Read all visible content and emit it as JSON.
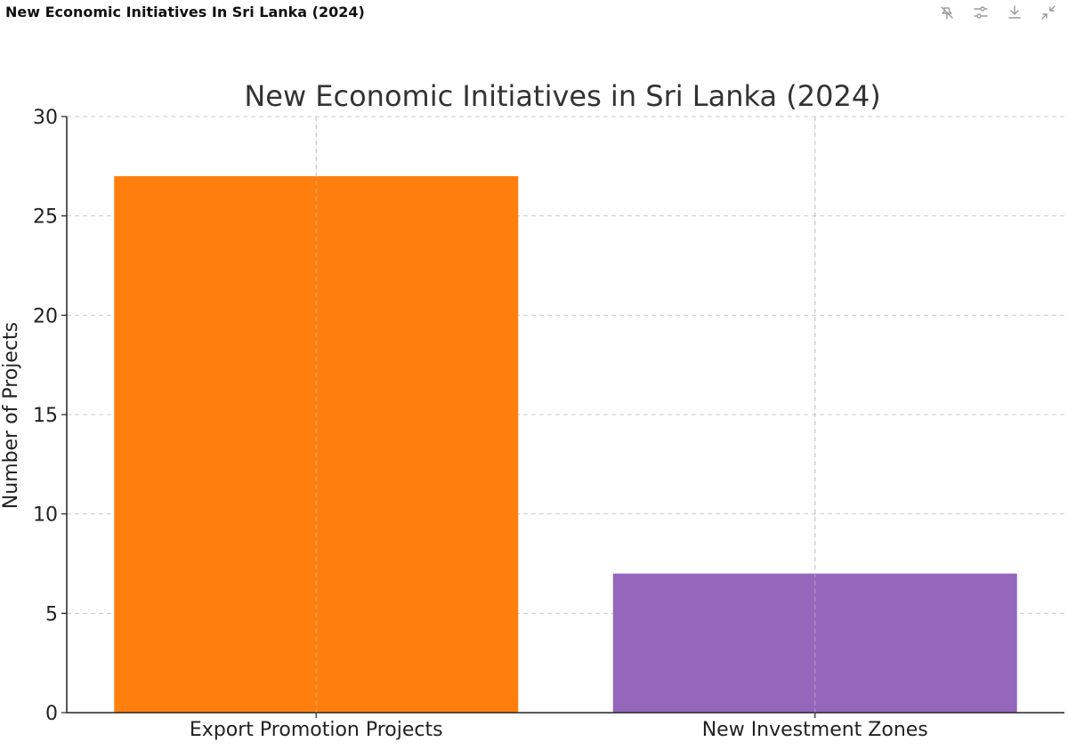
{
  "header": {
    "title": "New Economic Initiatives In Sri Lanka (2024)"
  },
  "toolbar": {
    "icons": [
      "pin-off-icon",
      "sliders-icon",
      "download-icon",
      "collapse-icon"
    ]
  },
  "colors": {
    "bar_1": "#ff7f0e",
    "bar_2": "#9467bd",
    "grid": "#cccccc",
    "axis": "#222222",
    "text": "#333333"
  },
  "chart_data": {
    "type": "bar",
    "title": "New Economic Initiatives in Sri Lanka (2024)",
    "xlabel": "",
    "ylabel": "Number of Projects",
    "categories": [
      "Export Promotion Projects",
      "New Investment Zones"
    ],
    "values": [
      27,
      7
    ],
    "ylim": [
      0,
      30
    ],
    "yticks": [
      0,
      5,
      10,
      15,
      20,
      25,
      30
    ],
    "grid": true
  }
}
